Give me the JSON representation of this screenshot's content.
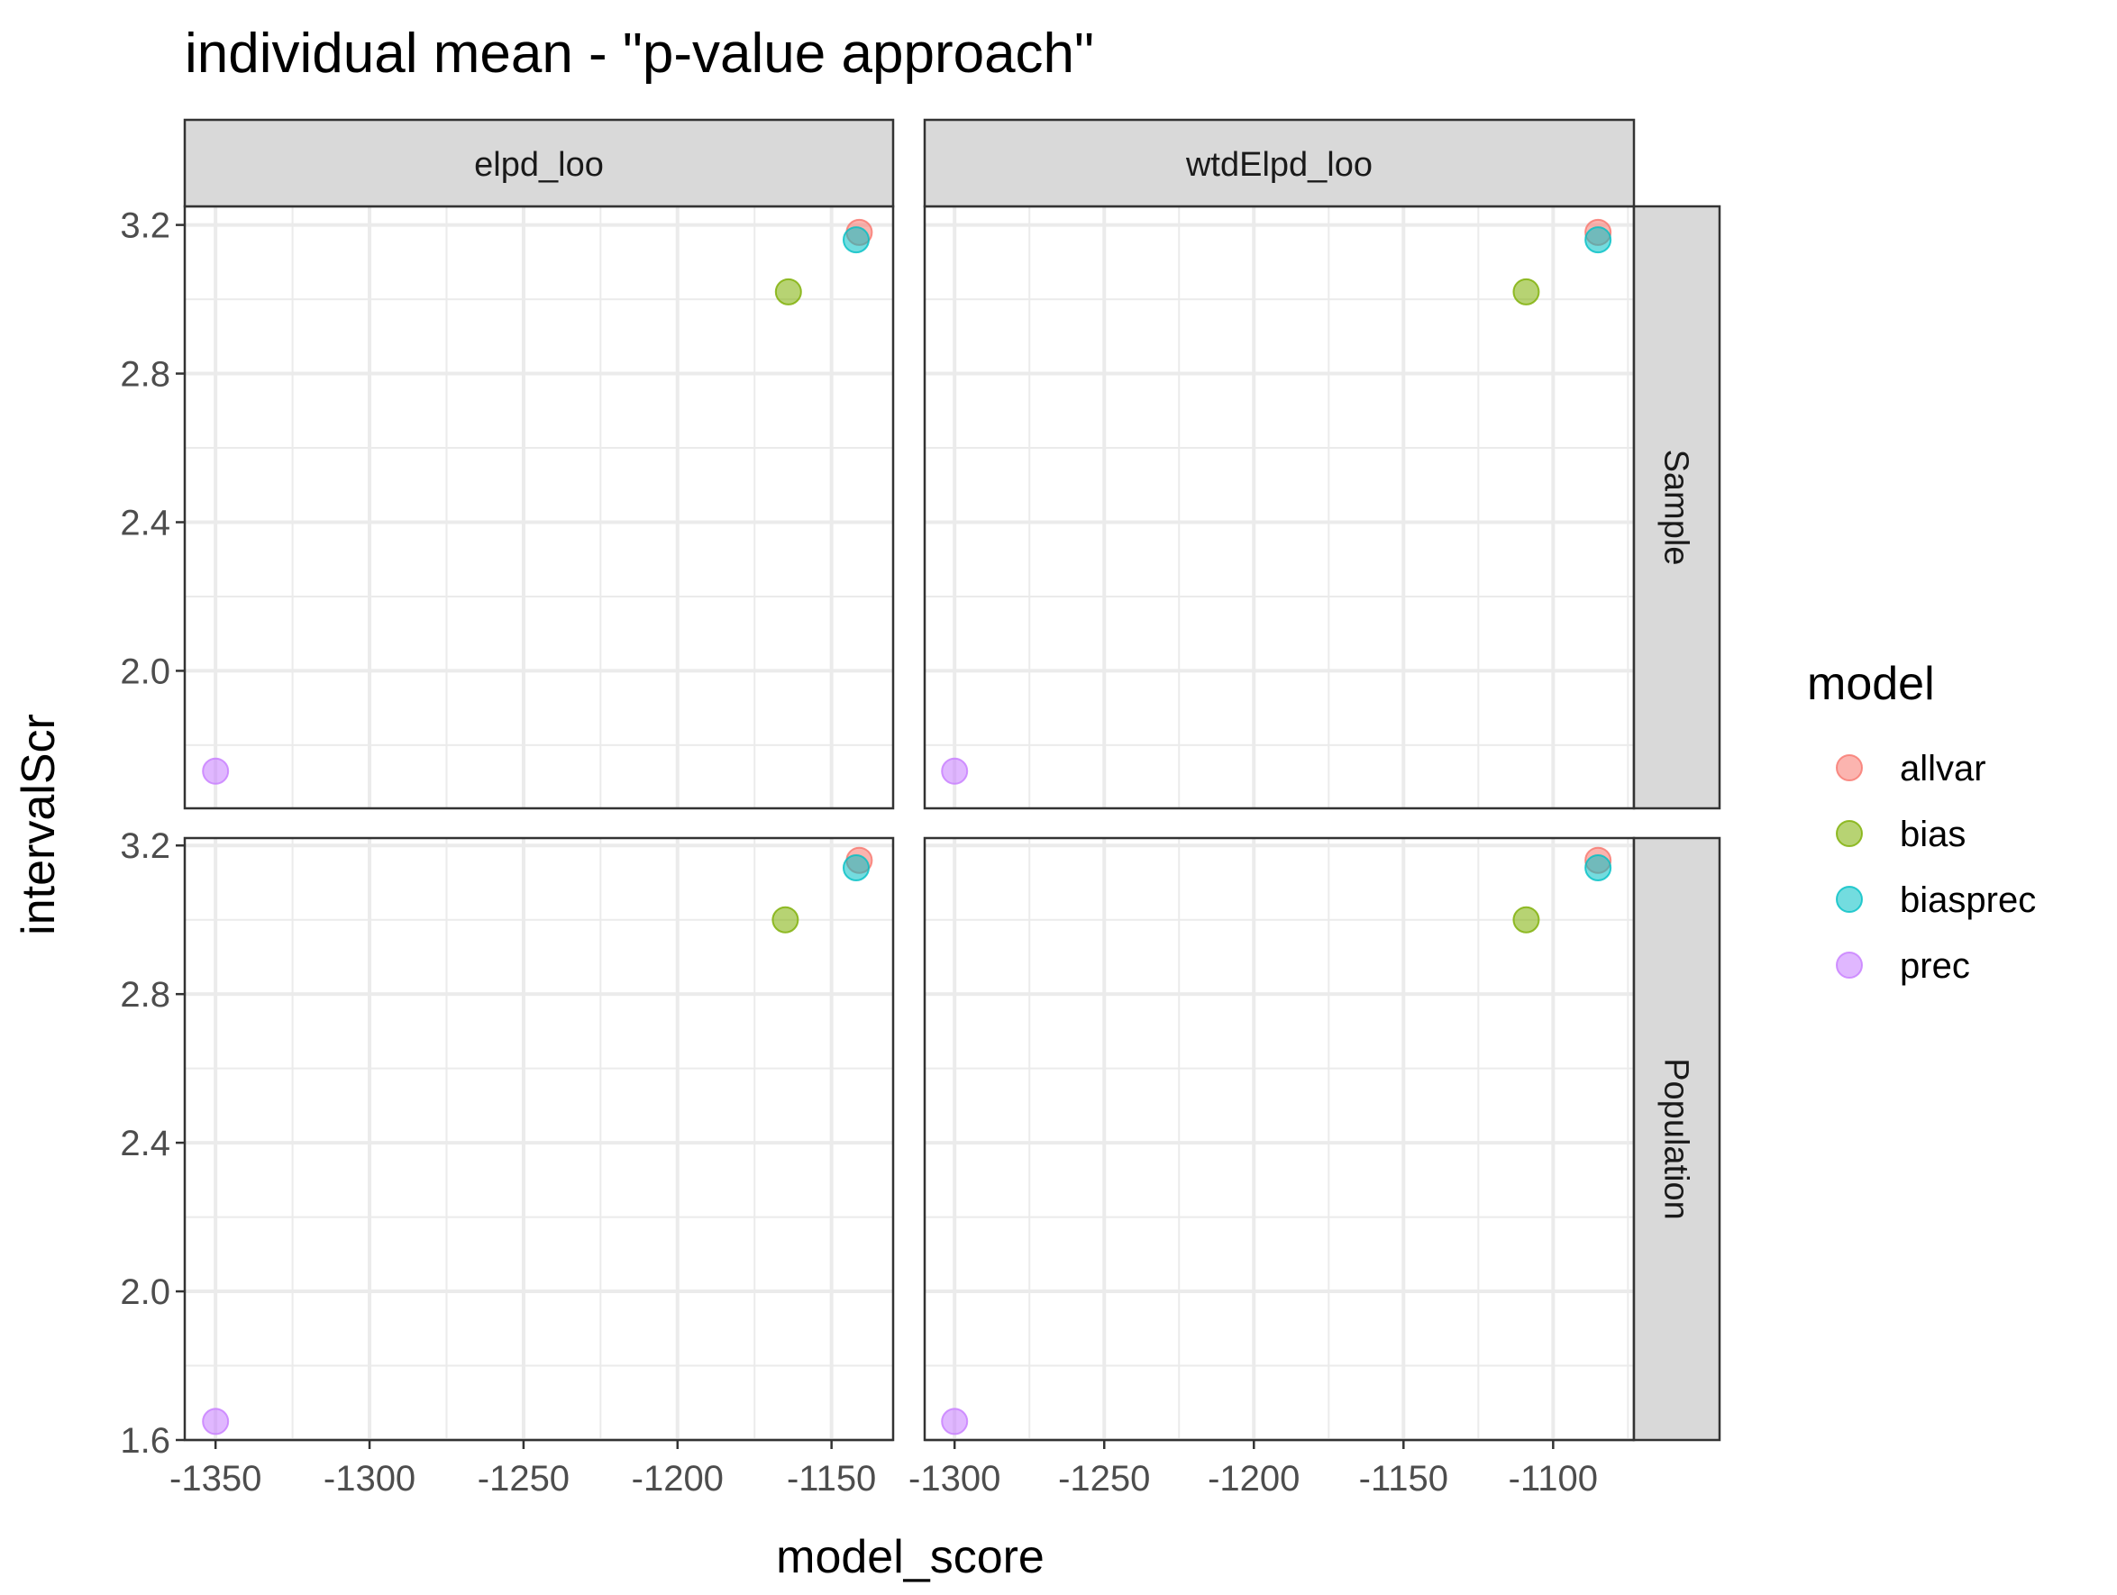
{
  "chart_data": {
    "type": "scatter",
    "title": "individual mean - \"p-value approach\"",
    "xlabel": "model_score",
    "ylabel": "intervalScr",
    "facet_columns": [
      {
        "label": "elpd_loo",
        "xlim": [
          -1360,
          -1130
        ],
        "xticks": [
          -1350,
          -1300,
          -1250,
          -1200,
          -1150
        ],
        "xtick_labels": [
          "-1350",
          "-1300",
          "-1250",
          "-1200",
          "-1150"
        ]
      },
      {
        "label": "wtdElpd_loo",
        "xlim": [
          -1310,
          -1073
        ],
        "xticks": [
          -1300,
          -1250,
          -1200,
          -1150,
          -1100
        ],
        "xtick_labels": [
          "-1300",
          "-1250",
          "-1200",
          "-1150",
          "-1100"
        ]
      }
    ],
    "facet_rows": [
      {
        "label": "Sample",
        "ylim": [
          1.63,
          3.25
        ],
        "yticks": [
          2.0,
          2.4,
          2.8,
          3.2
        ],
        "ytick_labels": [
          "2.0",
          "2.4",
          "2.8",
          "3.2"
        ]
      },
      {
        "label": "Population",
        "ylim": [
          1.6,
          3.22
        ],
        "yticks": [
          1.6,
          2.0,
          2.4,
          2.8,
          3.2
        ],
        "ytick_labels": [
          "1.6",
          "2.0",
          "2.4",
          "2.8",
          "3.2"
        ]
      }
    ],
    "legend": {
      "title": "model",
      "position": "right",
      "entries": [
        {
          "name": "allvar",
          "color": "#F8766D"
        },
        {
          "name": "bias",
          "color": "#7CAE00"
        },
        {
          "name": "biasprec",
          "color": "#00BFC4"
        },
        {
          "name": "prec",
          "color": "#C77CFF"
        }
      ]
    },
    "series": [
      {
        "name": "allvar",
        "points": [
          {
            "col": "elpd_loo",
            "row": "Sample",
            "x": -1141,
            "y": 3.18
          },
          {
            "col": "wtdElpd_loo",
            "row": "Sample",
            "x": -1085,
            "y": 3.18
          },
          {
            "col": "elpd_loo",
            "row": "Population",
            "x": -1141,
            "y": 3.16
          },
          {
            "col": "wtdElpd_loo",
            "row": "Population",
            "x": -1085,
            "y": 3.16
          }
        ]
      },
      {
        "name": "bias",
        "points": [
          {
            "col": "elpd_loo",
            "row": "Sample",
            "x": -1164,
            "y": 3.02
          },
          {
            "col": "wtdElpd_loo",
            "row": "Sample",
            "x": -1109,
            "y": 3.02
          },
          {
            "col": "elpd_loo",
            "row": "Population",
            "x": -1165,
            "y": 3.0
          },
          {
            "col": "wtdElpd_loo",
            "row": "Population",
            "x": -1109,
            "y": 3.0
          }
        ]
      },
      {
        "name": "biasprec",
        "points": [
          {
            "col": "elpd_loo",
            "row": "Sample",
            "x": -1142,
            "y": 3.16
          },
          {
            "col": "wtdElpd_loo",
            "row": "Sample",
            "x": -1085,
            "y": 3.16
          },
          {
            "col": "elpd_loo",
            "row": "Population",
            "x": -1142,
            "y": 3.14
          },
          {
            "col": "wtdElpd_loo",
            "row": "Population",
            "x": -1085,
            "y": 3.14
          }
        ]
      },
      {
        "name": "prec",
        "points": [
          {
            "col": "elpd_loo",
            "row": "Sample",
            "x": -1350,
            "y": 1.73
          },
          {
            "col": "wtdElpd_loo",
            "row": "Sample",
            "x": -1300,
            "y": 1.73
          },
          {
            "col": "elpd_loo",
            "row": "Population",
            "x": -1350,
            "y": 1.65
          },
          {
            "col": "wtdElpd_loo",
            "row": "Population",
            "x": -1300,
            "y": 1.65
          }
        ]
      }
    ],
    "grid": true,
    "theme": "bw"
  }
}
